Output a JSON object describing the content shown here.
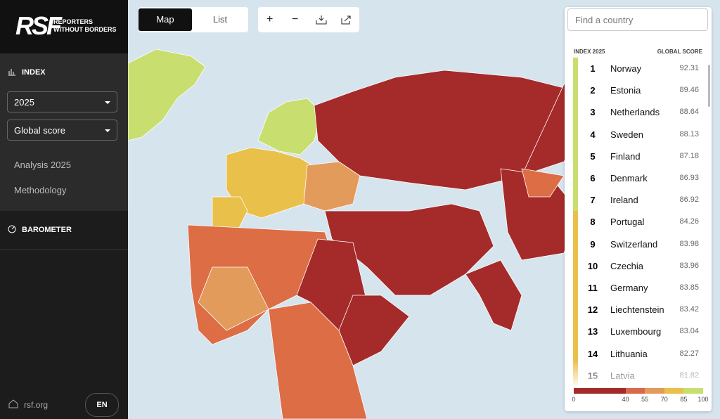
{
  "sidebar": {
    "logo": "RSF",
    "logo_lines": [
      "REPORTERS",
      "WITHOUT BORDERS"
    ],
    "index_label": "INDEX",
    "year": "2025",
    "score_select": "Global score",
    "links": [
      "Analysis 2025",
      "Methodology"
    ],
    "barometer": "BAROMETER",
    "footer_link": "rsf.org",
    "language": "EN"
  },
  "toolbar": {
    "tabs": [
      "Map",
      "List"
    ]
  },
  "search": {
    "placeholder": "Find a country"
  },
  "ranking": {
    "headers": [
      "INDEX 2025",
      "GLOBAL SCORE"
    ],
    "rows": [
      [
        1,
        "Norway",
        92.31
      ],
      [
        2,
        "Estonia",
        89.46
      ],
      [
        3,
        "Netherlands",
        88.64
      ],
      [
        4,
        "Sweden",
        88.13
      ],
      [
        5,
        "Finland",
        87.18
      ],
      [
        6,
        "Denmark",
        86.93
      ],
      [
        7,
        "Ireland",
        86.92
      ],
      [
        8,
        "Portugal",
        84.26
      ],
      [
        9,
        "Switzerland",
        83.98
      ],
      [
        10,
        "Czechia",
        83.96
      ],
      [
        11,
        "Germany",
        83.85
      ],
      [
        12,
        "Liechtenstein",
        83.42
      ],
      [
        13,
        "Luxembourg",
        83.04
      ],
      [
        14,
        "Lithuania",
        82.27
      ],
      [
        15,
        "Latvia",
        81.82
      ]
    ]
  },
  "legend": {
    "ticks": [
      0,
      40,
      55,
      70,
      85,
      100
    ],
    "colors": [
      "#a52a2a",
      "#d8694a",
      "#e39b5b",
      "#e9c04a",
      "#c8de6e"
    ]
  }
}
